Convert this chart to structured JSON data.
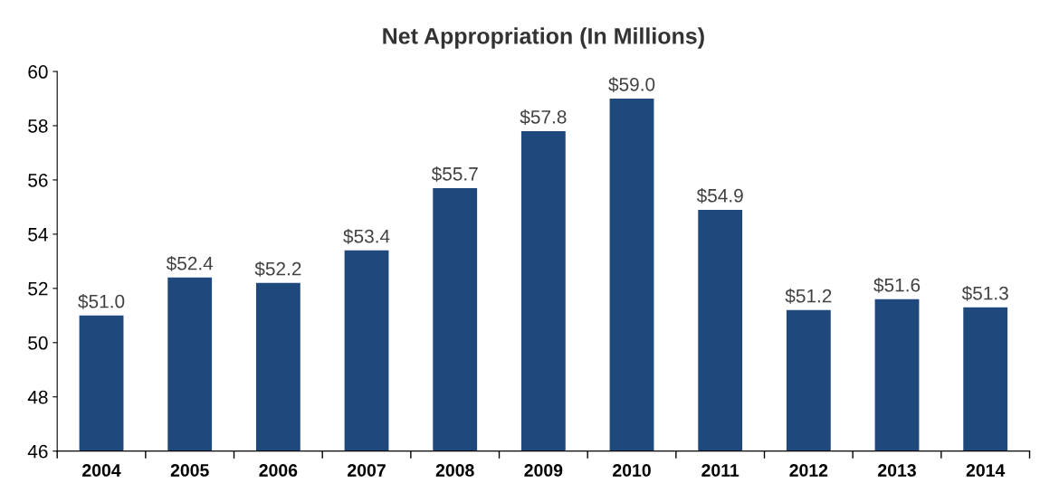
{
  "chart_data": {
    "type": "bar",
    "title": "Net Appropriation (In Millions)",
    "categories": [
      "2004",
      "2005",
      "2006",
      "2007",
      "2008",
      "2009",
      "2010",
      "2011",
      "2012",
      "2013",
      "2014"
    ],
    "values": [
      51.0,
      52.4,
      52.2,
      53.4,
      55.7,
      57.8,
      59.0,
      54.9,
      51.2,
      51.6,
      51.3
    ],
    "value_labels": [
      "$51.0",
      "$52.4",
      "$52.2",
      "$53.4",
      "$55.7",
      "$57.8",
      "$59.0",
      "$54.9",
      "$51.2",
      "$51.6",
      "$51.3"
    ],
    "color": "#1f497d",
    "ylim": [
      46,
      60
    ],
    "yticks": [
      46,
      48,
      50,
      52,
      54,
      56,
      58,
      60
    ],
    "grid": false
  }
}
